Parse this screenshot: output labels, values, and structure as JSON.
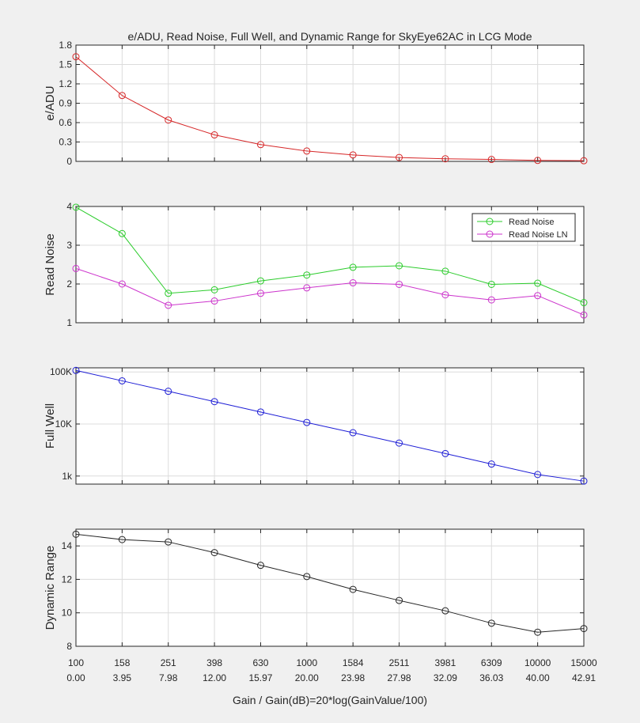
{
  "chart_data": {
    "type": "line",
    "title": "e/ADU, Read Noise, Full Well, and Dynamic Range for SkyEye62AC in LCG Mode",
    "xlabel": "Gain / Gain(dB)=20*log(GainValue/100)",
    "x_tick_labels_gain": [
      "100",
      "158",
      "251",
      "398",
      "630",
      "1000",
      "1584",
      "2511",
      "3981",
      "6309",
      "10000",
      "15000"
    ],
    "x_tick_labels_db": [
      "0.00",
      "3.95",
      "7.98",
      "12.00",
      "15.97",
      "20.00",
      "23.98",
      "27.98",
      "32.09",
      "36.03",
      "40.00",
      "42.91"
    ],
    "grid": true,
    "panels": [
      {
        "ylabel": "e/ADU",
        "ylim": [
          0,
          1.8
        ],
        "yscale": "linear",
        "yticks": [
          0,
          0.3,
          0.6,
          0.9,
          1.2,
          1.5,
          1.8
        ],
        "ytick_labels": [
          "0",
          "0.3",
          "0.6",
          "0.9",
          "1.2",
          "1.5",
          "1.8"
        ],
        "legend": null,
        "series": [
          {
            "color": "#d62728",
            "values": [
              1.62,
              1.02,
              0.64,
              0.41,
              0.26,
              0.16,
              0.1,
              0.06,
              0.04,
              0.03,
              0.015,
              0.01
            ]
          }
        ]
      },
      {
        "ylabel": "Read Noise",
        "ylim": [
          1,
          4
        ],
        "yscale": "linear",
        "yticks": [
          1,
          2,
          3,
          4
        ],
        "ytick_labels": [
          "1",
          "2",
          "3",
          "4"
        ],
        "legend": "top-right",
        "series": [
          {
            "name": "Read Noise",
            "color": "#2ccc2c",
            "values": [
              3.98,
              3.3,
              1.76,
              1.85,
              2.08,
              2.23,
              2.43,
              2.47,
              2.33,
              1.99,
              2.02,
              1.52
            ]
          },
          {
            "name": "Read Noise LN",
            "color": "#cc33cc",
            "values": [
              2.4,
              2.0,
              1.45,
              1.56,
              1.76,
              1.9,
              2.03,
              1.99,
              1.72,
              1.59,
              1.7,
              1.2
            ]
          }
        ]
      },
      {
        "ylabel": "Full Well",
        "ylim": [
          700,
          120000
        ],
        "yscale": "log",
        "yticks": [
          1000,
          10000,
          100000
        ],
        "ytick_labels": [
          "1k",
          "10K",
          "100K"
        ],
        "legend": null,
        "series": [
          {
            "color": "#1f1fd6",
            "values": [
              107000,
              67500,
              42500,
              26900,
              17000,
              10700,
              6800,
              4300,
              2700,
              1700,
              1070,
              800
            ]
          }
        ]
      },
      {
        "ylabel": "Dynamic Range",
        "ylim": [
          8,
          15
        ],
        "yscale": "linear",
        "yticks": [
          8,
          10,
          12,
          14
        ],
        "ytick_labels": [
          "8",
          "10",
          "12",
          "14"
        ],
        "legend": null,
        "series": [
          {
            "color": "#262626",
            "values": [
              14.7,
              14.38,
              14.24,
              13.6,
              12.84,
              12.17,
              11.4,
              10.74,
              10.12,
              9.38,
              8.84,
              9.06
            ]
          }
        ]
      }
    ]
  }
}
